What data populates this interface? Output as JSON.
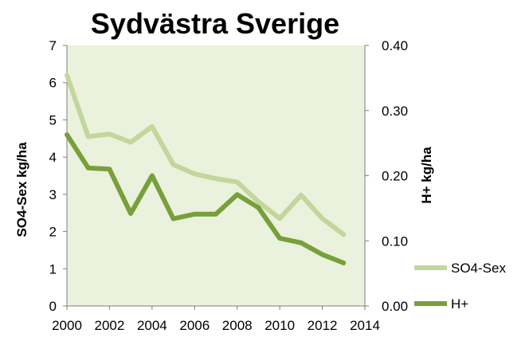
{
  "chart_data": {
    "type": "line",
    "title": "Sydvästra Sverige",
    "ylabel": "SO4-Sex kg/ha",
    "y2label": "H+ kg/ha",
    "x": [
      2000,
      2001,
      2002,
      2003,
      2004,
      2005,
      2006,
      2007,
      2008,
      2009,
      2010,
      2011,
      2012,
      2013
    ],
    "xlim": [
      2000,
      2014
    ],
    "xticks": [
      "2000",
      "2002",
      "2004",
      "2006",
      "2008",
      "2010",
      "2012",
      "2014"
    ],
    "ylim": [
      0,
      7
    ],
    "yticks": [
      "0",
      "1",
      "2",
      "3",
      "4",
      "5",
      "6",
      "7"
    ],
    "y2lim": [
      0,
      0.4
    ],
    "y2ticks": [
      "0.00",
      "0.10",
      "0.20",
      "0.30",
      "0.40"
    ],
    "grid": false,
    "plot_background": "#eaf1dd",
    "legend_position": "right",
    "series": [
      {
        "name": "SO4-Sex",
        "axis": "left",
        "color": "#c3d69b",
        "values": [
          6.2,
          4.55,
          4.62,
          4.4,
          4.82,
          3.8,
          3.55,
          3.42,
          3.33,
          2.8,
          2.35,
          2.98,
          2.35,
          1.92
        ]
      },
      {
        "name": "H+",
        "axis": "right",
        "color": "#77a03a",
        "values": [
          0.263,
          0.212,
          0.21,
          0.142,
          0.2,
          0.134,
          0.141,
          0.141,
          0.171,
          0.151,
          0.104,
          0.097,
          0.079,
          0.066
        ]
      }
    ]
  }
}
